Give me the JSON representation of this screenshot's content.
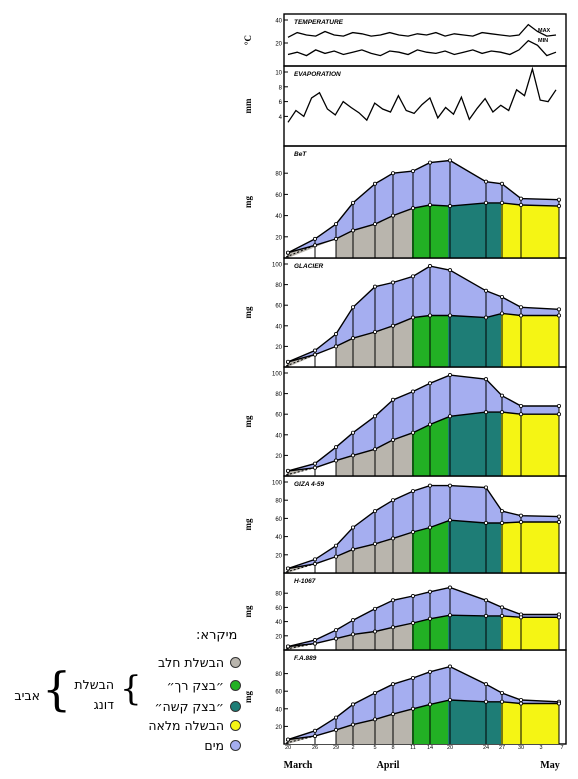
{
  "colors": {
    "milk": "#b9b5ad",
    "soft_dough": "#22b024",
    "hard_dough": "#1e7d76",
    "full_ripeness": "#f5f514",
    "water": "#a5aef0"
  },
  "legend": {
    "title": "מיקרא:",
    "items": [
      {
        "label": "הבשלת חלב",
        "color": "#b9b5ad"
      },
      {
        "label": "״בצק רך״",
        "color": "#22b024"
      },
      {
        "label": "״בצק קשה״",
        "color": "#1e7d76"
      },
      {
        "label": "הבשלה מלאה",
        "color": "#f5f514"
      },
      {
        "label": "מים",
        "color": "#a5aef0"
      }
    ],
    "group_inner_1": "הבשלת",
    "group_inner_2": "דונג",
    "group_outer": "אביב"
  },
  "chart_data": [
    {
      "type": "line",
      "title": "TEMPERATURE",
      "ylabel": "°C",
      "ylim": [
        0,
        40
      ],
      "yticks": [
        20,
        40
      ],
      "series": [
        {
          "name": "MAX",
          "values": [
            25,
            29,
            27,
            26,
            30,
            27,
            26,
            29,
            28,
            26,
            27,
            29,
            27,
            26,
            28,
            27,
            29,
            26,
            28,
            27,
            26,
            29,
            28,
            27,
            26,
            27,
            36,
            30,
            26,
            27
          ]
        },
        {
          "name": "MIN",
          "values": [
            10,
            12,
            9,
            14,
            11,
            13,
            10,
            12,
            14,
            11,
            9,
            13,
            12,
            10,
            14,
            12,
            11,
            13,
            10,
            12,
            14,
            11,
            13,
            12,
            10,
            14,
            22,
            18,
            9,
            12
          ]
        }
      ],
      "series_labels": [
        "MAX",
        "MIN"
      ]
    },
    {
      "type": "line",
      "title": "EVAPORATION",
      "ylabel": "mm",
      "ylim": [
        0,
        10
      ],
      "yticks": [
        4,
        6,
        8,
        10
      ],
      "series": [
        {
          "values": [
            3.2,
            4.8,
            4.0,
            6.5,
            7.2,
            5.0,
            4.2,
            6.0,
            5.2,
            4.5,
            3.5,
            5.8,
            5.0,
            4.6,
            6.8,
            4.8,
            4.4,
            5.6,
            6.5,
            3.8,
            5.2,
            4.3,
            6.6,
            3.6,
            5.1,
            6.4,
            4.6,
            5.5,
            4.8,
            7.6,
            6.8,
            10.4,
            6.2,
            6.0,
            7.6
          ]
        }
      ]
    },
    {
      "type": "area",
      "title": "BeT",
      "ylabel": "mg",
      "ylim": [
        0,
        100
      ],
      "yticks": [
        20,
        40,
        60,
        80
      ],
      "x": [
        20,
        26,
        29,
        2,
        5,
        8,
        11,
        14,
        20,
        24,
        27,
        30,
        3
      ],
      "total": [
        5,
        18,
        32,
        52,
        70,
        80,
        82,
        90,
        92,
        72,
        70,
        56,
        55
      ],
      "dry": [
        5,
        12,
        18,
        26,
        32,
        40,
        47,
        50,
        49,
        52,
        52,
        50,
        49
      ]
    },
    {
      "type": "area",
      "title": "GLACIER",
      "ylabel": "mg",
      "ylim": [
        0,
        100
      ],
      "yticks": [
        20,
        40,
        60,
        80,
        100
      ],
      "x": [
        20,
        26,
        29,
        2,
        5,
        8,
        11,
        14,
        20,
        24,
        27,
        30,
        3
      ],
      "total": [
        5,
        16,
        32,
        58,
        78,
        82,
        88,
        98,
        94,
        74,
        68,
        58,
        56
      ],
      "dry": [
        5,
        12,
        20,
        28,
        34,
        40,
        48,
        50,
        50,
        48,
        52,
        50,
        50
      ]
    },
    {
      "type": "area",
      "title": "",
      "ylabel": "mg",
      "ylim": [
        0,
        100
      ],
      "yticks": [
        20,
        40,
        60,
        80,
        100
      ],
      "x": [
        20,
        26,
        29,
        2,
        5,
        8,
        11,
        14,
        20,
        24,
        27,
        30,
        3
      ],
      "total": [
        5,
        12,
        28,
        42,
        58,
        74,
        82,
        90,
        98,
        94,
        78,
        68,
        68
      ],
      "dry": [
        5,
        8,
        15,
        20,
        26,
        35,
        42,
        50,
        58,
        62,
        62,
        60,
        60
      ]
    },
    {
      "type": "area",
      "title": "GIZA 4-59",
      "ylabel": "mg",
      "ylim": [
        0,
        100
      ],
      "yticks": [
        20,
        40,
        60,
        80,
        100
      ],
      "x": [
        20,
        26,
        29,
        2,
        5,
        8,
        11,
        14,
        20,
        24,
        27,
        30,
        3
      ],
      "total": [
        5,
        15,
        30,
        50,
        68,
        80,
        90,
        96,
        96,
        94,
        68,
        63,
        62
      ],
      "dry": [
        5,
        10,
        18,
        26,
        32,
        38,
        45,
        50,
        58,
        55,
        55,
        56,
        56
      ]
    },
    {
      "type": "area",
      "title": "H-1067",
      "ylabel": "mg",
      "ylim": [
        0,
        100
      ],
      "yticks": [
        20,
        40,
        60,
        80
      ],
      "x": [
        20,
        26,
        29,
        2,
        5,
        8,
        11,
        14,
        20,
        24,
        27,
        30,
        3
      ],
      "total": [
        5,
        14,
        28,
        42,
        58,
        70,
        76,
        82,
        88,
        70,
        60,
        50,
        50
      ],
      "dry": [
        5,
        9,
        16,
        22,
        26,
        32,
        38,
        44,
        49,
        48,
        48,
        46,
        46
      ]
    },
    {
      "type": "area",
      "title": "F.A.889",
      "ylabel": "mg",
      "ylim": [
        0,
        100
      ],
      "yticks": [
        20,
        40,
        60,
        80
      ],
      "x": [
        20,
        26,
        29,
        2,
        5,
        8,
        11,
        14,
        20,
        24,
        27,
        30,
        3
      ],
      "total": [
        5,
        15,
        30,
        45,
        58,
        68,
        75,
        82,
        88,
        68,
        58,
        50,
        48
      ],
      "dry": [
        5,
        9,
        16,
        22,
        28,
        34,
        40,
        45,
        50,
        48,
        48,
        46,
        46
      ]
    }
  ],
  "x_axis": {
    "tick_labels": [
      "20",
      "26",
      "29",
      "2",
      "5",
      "8",
      "11",
      "14",
      "20",
      "24",
      "27",
      "30",
      "3",
      "7"
    ],
    "months": [
      "March",
      "April",
      "May"
    ]
  }
}
